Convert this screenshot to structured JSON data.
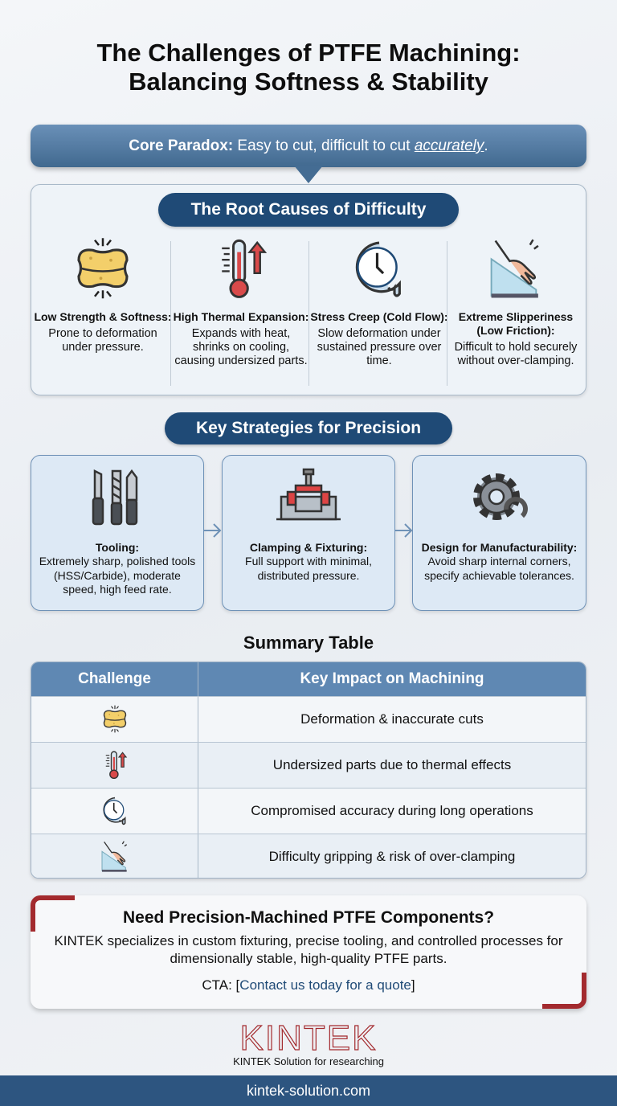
{
  "title": {
    "line1": "The Challenges of PTFE Machining:",
    "line2": "Balancing Softness & Stability"
  },
  "paradox": {
    "label": "Core Paradox:",
    "text": " Easy to cut, difficult to cut ",
    "emphasis": "accurately",
    "end": "."
  },
  "root_causes": {
    "heading": "The Root Causes of Difficulty",
    "items": [
      {
        "icon": "sponge-icon",
        "title": "Low Strength & Softness:",
        "desc": "Prone to deformation under pressure."
      },
      {
        "icon": "thermometer-icon",
        "title": "High Thermal Expansion:",
        "desc": "Expands with heat, shrinks on cooling, causing undersized parts."
      },
      {
        "icon": "melting-clock-icon",
        "title": "Stress Creep (Cold Flow):",
        "desc": "Slow deformation under sustained pressure over time."
      },
      {
        "icon": "slipping-hand-icon",
        "title": "Extreme Slipperiness (Low Friction):",
        "desc": "Difficult to hold securely without over-clamping."
      }
    ]
  },
  "strategies": {
    "heading": "Key Strategies for Precision",
    "items": [
      {
        "icon": "cutting-tools-icon",
        "title": "Tooling:",
        "desc": "Extremely sharp, polished tools (HSS/Carbide), moderate speed, high feed rate."
      },
      {
        "icon": "clamp-fixture-icon",
        "title": "Clamping & Fixturing:",
        "desc": "Full support with minimal, distributed pressure."
      },
      {
        "icon": "gear-icon",
        "title": "Design for Manufacturability:",
        "desc": "Avoid sharp internal corners, specify achievable tolerances."
      }
    ]
  },
  "summary": {
    "title": "Summary Table",
    "headers": [
      "Challenge",
      "Key Impact on Machining"
    ],
    "rows": [
      {
        "icon": "sponge-icon",
        "impact": "Deformation & inaccurate cuts"
      },
      {
        "icon": "thermometer-icon",
        "impact": "Undersized parts due to thermal effects"
      },
      {
        "icon": "melting-clock-icon",
        "impact": "Compromised accuracy during long operations"
      },
      {
        "icon": "slipping-hand-icon",
        "impact": "Difficulty gripping & risk of over-clamping"
      }
    ]
  },
  "cta": {
    "heading": "Need Precision-Machined PTFE Components?",
    "body": "KINTEK specializes in custom fixturing, precise tooling, and controlled processes for dimensionally stable, high-quality PTFE parts.",
    "label": "CTA: [",
    "link": "Contact us today for a quote",
    "close": "]"
  },
  "brand": {
    "logo": "KINTEK",
    "tagline": "KINTEK Solution for researching",
    "website": "kintek-solution.com"
  },
  "colors": {
    "navy": "#1f4a76",
    "accent_red": "#a32a2e",
    "header_blue": "#5f88b3"
  }
}
